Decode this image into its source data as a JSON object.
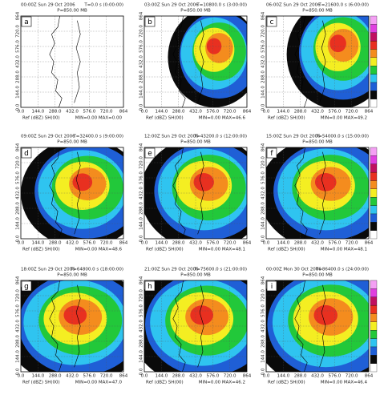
{
  "panels": [
    {
      "label": "a",
      "time": "00:00Z Sun 29 Oct 2006",
      "elapsed": "T=0.0 s (0:00:00)",
      "level": "P=850.00 MB",
      "field": "Ref (dBZ) SH(00)",
      "range": "MIN=0.00 MAX=0.00"
    },
    {
      "label": "b",
      "time": "03:00Z Sun 29 Oct 2006",
      "elapsed": "T=10800.0 s (3:00:00)",
      "level": "P=850.00 MB",
      "field": "Ref (dBZ) SH(00)",
      "range": "MIN=0.00 MAX=46.6"
    },
    {
      "label": "c",
      "time": "06:00Z Sun 29 Oct 2006",
      "elapsed": "T=21600.0 s (6:00:00)",
      "level": "P=850.00 MB",
      "field": "Ref (dBZ) SH(00)",
      "range": "MIN=0.00 MAX=49.2"
    },
    {
      "label": "d",
      "time": "09:00Z Sun 29 Oct 2006",
      "elapsed": "T=32400.0 s (9:00:00)",
      "level": "P=850.00 MB",
      "field": "Ref (dBZ) SH(00)",
      "range": "MIN=0.00 MAX=48.6"
    },
    {
      "label": "e",
      "time": "12:00Z Sun 29 Oct 2006",
      "elapsed": "T=43200.0 s (12:00:00)",
      "level": "P=850.00 MB",
      "field": "Ref (dBZ) SH(00)",
      "range": "MIN=0.00 MAX=48.1"
    },
    {
      "label": "f",
      "time": "15:00Z Sun 29 Oct 2006",
      "elapsed": "T=54000.0 s (15:00:00)",
      "level": "P=850.00 MB",
      "field": "Ref (dBZ) SH(00)",
      "range": "MIN=0.00 MAX=48.1"
    },
    {
      "label": "g",
      "time": "18:00Z Sun 29 Oct 2006",
      "elapsed": "T=64800.0 s (18:00:00)",
      "level": "P=850.00 MB",
      "field": "Ref (dBZ) SH(00)",
      "range": "MIN=0.00 MAX=47.0"
    },
    {
      "label": "h",
      "time": "21:00Z Sun 29 Oct 2006",
      "elapsed": "T=75600.0 s (21:00:00)",
      "level": "P=850.00 MB",
      "field": "Ref (dBZ) SH(00)",
      "range": "MIN=0.00 MAX=46.2"
    },
    {
      "label": "i",
      "time": "00:00Z Mon 30 Oct 2006",
      "elapsed": "T=86400.0 s (24:00:00)",
      "level": "P=850.00 MB",
      "field": "Ref (dBZ) SH(00)",
      "range": "MIN=0.00 MAX=46.4"
    }
  ],
  "x_ticks": [
    "0.0",
    "144.0",
    "288.0",
    "432.0",
    "576.0",
    "720.0",
    "864"
  ],
  "y_ticks": [
    "0.0",
    "144.0",
    "288.0",
    "432.0",
    "576.0",
    "720.0",
    "864"
  ]
}
